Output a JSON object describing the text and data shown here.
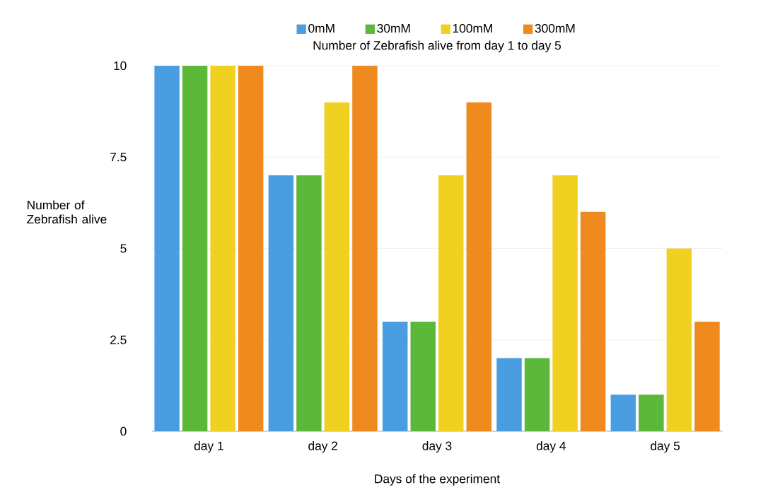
{
  "chart_data": {
    "type": "bar",
    "title": "Number of Zebrafish alive from day 1 to day 5",
    "xlabel": "Days of the experiment",
    "ylabel": "Number of Zebrafish alive",
    "categories": [
      "day 1",
      "day 2",
      "day 3",
      "day 4",
      "day 5"
    ],
    "series": [
      {
        "name": "0mM",
        "color": "#4a9de0",
        "values": [
          10,
          7,
          3,
          2,
          1
        ]
      },
      {
        "name": "30mM",
        "color": "#5cb83a",
        "values": [
          10,
          7,
          3,
          2,
          1
        ]
      },
      {
        "name": "100mM",
        "color": "#f0d020",
        "values": [
          10,
          9,
          7,
          7,
          5
        ]
      },
      {
        "name": "300mM",
        "color": "#ee8a1e",
        "values": [
          10,
          10,
          9,
          6,
          3
        ]
      }
    ],
    "ylim": [
      0,
      10
    ],
    "yticks": [
      0,
      2.5,
      5,
      7.5,
      10
    ],
    "grid": "y",
    "legend": "top"
  }
}
